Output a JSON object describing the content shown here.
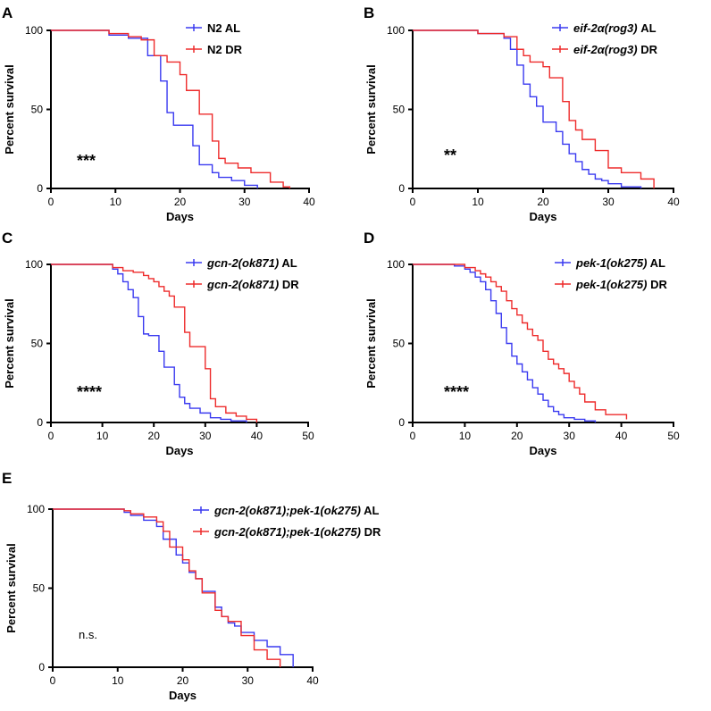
{
  "figure": "survival-curves",
  "colors": {
    "al": "#3a3af0",
    "dr": "#ee2b2b"
  },
  "chart_data": [
    {
      "panel": "A",
      "type": "line",
      "xlabel": "Days",
      "ylabel": "Percent survival",
      "xlim": [
        0,
        40
      ],
      "ylim": [
        0,
        100
      ],
      "xticks": [
        0,
        10,
        20,
        30,
        40
      ],
      "yticks": [
        0,
        50,
        100
      ],
      "annotation": "***",
      "legend": [
        {
          "italic": "",
          "plain": "N2 AL",
          "color": "#3a3af0"
        },
        {
          "italic": "",
          "plain": "N2 DR",
          "color": "#ee2b2b"
        }
      ],
      "series": [
        {
          "name": "N2 AL",
          "color": "#3a3af0",
          "x": [
            0,
            9,
            12,
            15,
            17,
            18,
            19,
            20,
            22,
            23,
            25,
            26,
            28,
            30,
            32
          ],
          "y": [
            100,
            97,
            95,
            84,
            68,
            48,
            40,
            40,
            27,
            15,
            10,
            7,
            5,
            2,
            0
          ]
        },
        {
          "name": "N2 DR",
          "color": "#ee2b2b",
          "x": [
            0,
            9,
            12,
            14,
            16,
            18,
            20,
            21,
            23,
            25,
            26,
            27,
            29,
            31,
            34,
            36,
            37
          ],
          "y": [
            100,
            98,
            96,
            94,
            84,
            80,
            72,
            62,
            47,
            30,
            19,
            16,
            13,
            10,
            4,
            1,
            0
          ]
        }
      ]
    },
    {
      "panel": "B",
      "type": "line",
      "xlabel": "Days",
      "ylabel": "Percent survival",
      "xlim": [
        0,
        40
      ],
      "ylim": [
        0,
        100
      ],
      "xticks": [
        0,
        10,
        20,
        30,
        40
      ],
      "yticks": [
        0,
        50,
        100
      ],
      "annotation": "**",
      "legend": [
        {
          "italic": "eif-2α(rog3)",
          "plain": " AL",
          "color": "#3a3af0"
        },
        {
          "italic": "eif-2α(rog3)",
          "plain": " DR",
          "color": "#ee2b2b"
        }
      ],
      "series": [
        {
          "name": "eif-2α(rog3) AL",
          "color": "#3a3af0",
          "x": [
            0,
            10,
            14,
            15,
            16,
            17,
            18,
            19,
            20,
            22,
            23,
            24,
            25,
            26,
            27,
            28,
            29,
            30,
            32,
            35
          ],
          "y": [
            100,
            98,
            95,
            88,
            78,
            66,
            58,
            52,
            42,
            36,
            28,
            22,
            17,
            12,
            9,
            6,
            5,
            3,
            1,
            0
          ]
        },
        {
          "name": "eif-2α(rog3) DR",
          "color": "#ee2b2b",
          "x": [
            0,
            10,
            14,
            16,
            17,
            18,
            20,
            21,
            23,
            24,
            25,
            26,
            28,
            30,
            32,
            35,
            37
          ],
          "y": [
            100,
            98,
            96,
            88,
            84,
            80,
            77,
            70,
            55,
            43,
            37,
            31,
            24,
            13,
            10,
            6,
            0
          ]
        }
      ]
    },
    {
      "panel": "C",
      "type": "line",
      "xlabel": "Days",
      "ylabel": "Percent survival",
      "xlim": [
        0,
        50
      ],
      "ylim": [
        0,
        100
      ],
      "xticks": [
        0,
        10,
        20,
        30,
        40,
        50
      ],
      "yticks": [
        0,
        50,
        100
      ],
      "annotation": "****",
      "legend": [
        {
          "italic": "gcn-2(ok871)",
          "plain": " AL",
          "color": "#3a3af0"
        },
        {
          "italic": "gcn-2(ok871)",
          "plain": " DR",
          "color": "#ee2b2b"
        }
      ],
      "series": [
        {
          "name": "gcn-2(ok871) AL",
          "color": "#3a3af0",
          "x": [
            0,
            12,
            13,
            14,
            15,
            16,
            17,
            18,
            19,
            21,
            22,
            24,
            25,
            26,
            27,
            29,
            31,
            33,
            35,
            38
          ],
          "y": [
            100,
            97,
            94,
            89,
            84,
            79,
            67,
            56,
            55,
            45,
            35,
            24,
            16,
            12,
            9,
            6,
            3,
            2,
            1,
            0
          ]
        },
        {
          "name": "gcn-2(ok871) DR",
          "color": "#ee2b2b",
          "x": [
            0,
            12,
            14,
            16,
            18,
            19,
            20,
            21,
            22,
            23,
            24,
            25,
            26,
            27,
            29,
            30,
            31,
            32,
            34,
            36,
            38,
            40
          ],
          "y": [
            100,
            98,
            96,
            95,
            93,
            91,
            89,
            86,
            83,
            80,
            73,
            73,
            57,
            48,
            48,
            34,
            15,
            10,
            6,
            4,
            2,
            0
          ]
        }
      ]
    },
    {
      "panel": "D",
      "type": "line",
      "xlabel": "Days",
      "ylabel": "Percent survival",
      "xlim": [
        0,
        50
      ],
      "ylim": [
        0,
        100
      ],
      "xticks": [
        0,
        10,
        20,
        30,
        40,
        50
      ],
      "yticks": [
        0,
        50,
        100
      ],
      "annotation": "****",
      "legend": [
        {
          "italic": "pek-1(ok275)",
          "plain": " AL",
          "color": "#3a3af0"
        },
        {
          "italic": "pek-1(ok275)",
          "plain": " DR",
          "color": "#ee2b2b"
        }
      ],
      "series": [
        {
          "name": "pek-1(ok275) AL",
          "color": "#3a3af0",
          "x": [
            0,
            8,
            10,
            11,
            12,
            13,
            14,
            15,
            16,
            17,
            18,
            19,
            20,
            21,
            22,
            23,
            24,
            25,
            26,
            27,
            28,
            29,
            31,
            33,
            35
          ],
          "y": [
            100,
            99,
            97,
            95,
            92,
            89,
            84,
            77,
            69,
            60,
            50,
            42,
            37,
            32,
            27,
            22,
            18,
            14,
            10,
            7,
            5,
            3,
            2,
            1,
            0
          ]
        },
        {
          "name": "pek-1(ok275) DR",
          "color": "#ee2b2b",
          "x": [
            0,
            10,
            12,
            13,
            14,
            15,
            16,
            17,
            18,
            19,
            20,
            21,
            22,
            23,
            24,
            25,
            26,
            27,
            28,
            29,
            30,
            31,
            32,
            33,
            35,
            37,
            41
          ],
          "y": [
            100,
            98,
            96,
            94,
            92,
            89,
            86,
            83,
            77,
            72,
            68,
            63,
            59,
            55,
            52,
            45,
            40,
            37,
            34,
            31,
            26,
            22,
            18,
            13,
            8,
            5,
            2
          ]
        }
      ]
    },
    {
      "panel": "E",
      "type": "line",
      "xlabel": "Days",
      "ylabel": "Percent survival",
      "xlim": [
        0,
        40
      ],
      "ylim": [
        0,
        100
      ],
      "xticks": [
        0,
        10,
        20,
        30,
        40
      ],
      "yticks": [
        0,
        50,
        100
      ],
      "annotation": "n.s.",
      "legend": [
        {
          "italic": "gcn-2(ok871);pek-1(ok275)",
          "plain": " AL",
          "color": "#3a3af0"
        },
        {
          "italic": "gcn-2(ok871);pek-1(ok275)",
          "plain": " DR",
          "color": "#ee2b2b"
        }
      ],
      "series": [
        {
          "name": "gcn-2(ok871);pek-1(ok275) AL",
          "color": "#3a3af0",
          "x": [
            0,
            11,
            12,
            14,
            16,
            17,
            19,
            20,
            21,
            22,
            23,
            25,
            26,
            27,
            28,
            29,
            31,
            33,
            35,
            37
          ],
          "y": [
            100,
            98,
            96,
            93,
            89,
            81,
            71,
            66,
            60,
            56,
            48,
            38,
            32,
            28,
            26,
            22,
            17,
            13,
            8,
            0
          ]
        },
        {
          "name": "gcn-2(ok871);pek-1(ok275) DR",
          "color": "#ee2b2b",
          "x": [
            0,
            11,
            12,
            14,
            16,
            17,
            18,
            20,
            21,
            22,
            23,
            25,
            26,
            27,
            29,
            31,
            33,
            35
          ],
          "y": [
            100,
            99,
            97,
            95,
            92,
            86,
            76,
            68,
            61,
            56,
            47,
            36,
            32,
            29,
            20,
            11,
            5,
            0
          ]
        }
      ]
    }
  ]
}
